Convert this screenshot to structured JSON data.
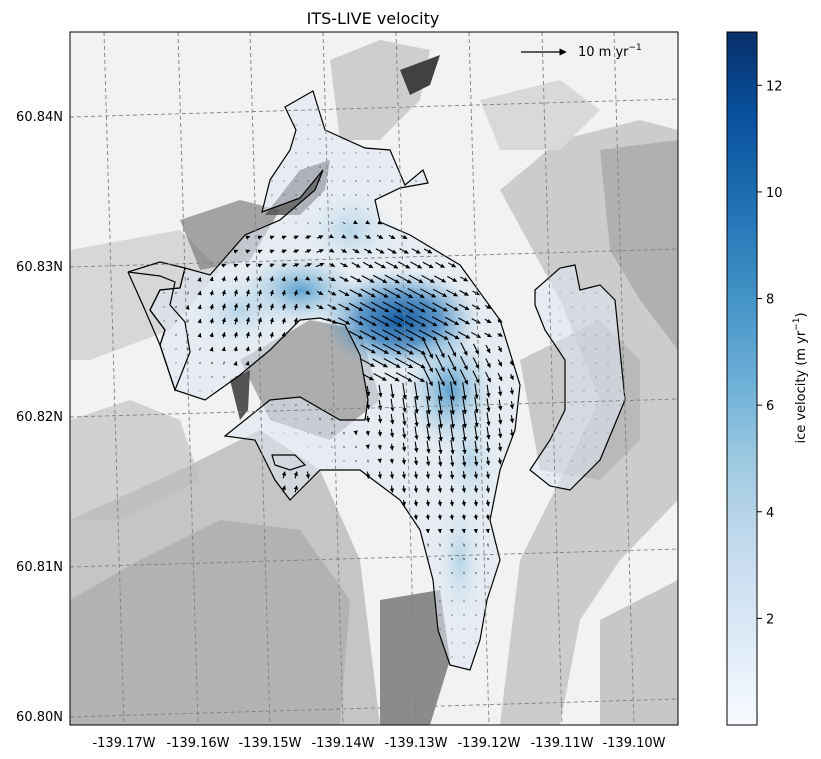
{
  "title": "ITS-LIVE velocity",
  "scale_arrow": {
    "value": 10,
    "label_main": "10 m yr",
    "label_exp": "−1"
  },
  "lat_labels": [
    "60.84N",
    "60.83N",
    "60.82N",
    "60.81N",
    "60.80N"
  ],
  "lon_labels": [
    "-139.17W",
    "-139.16W",
    "-139.15W",
    "-139.14W",
    "-139.13W",
    "-139.12W",
    "-139.11W",
    "-139.10W"
  ],
  "colorbar": {
    "label_main": "ice velocity (m yr",
    "label_exp": "−1",
    "label_close": ")",
    "ticks": [
      "2",
      "4",
      "6",
      "8",
      "10",
      "12"
    ],
    "range": [
      0,
      13
    ],
    "colormap": "Blues",
    "color_low": "#f7fbff",
    "color_high": "#08306b"
  },
  "colors": {
    "outline": "#000000",
    "grid": "#808080",
    "arrow": "#000000"
  }
}
